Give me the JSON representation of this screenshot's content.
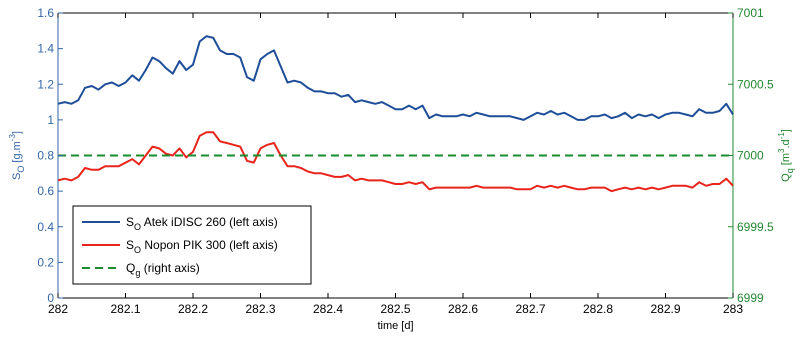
{
  "chart_data": {
    "type": "line",
    "xlabel": "time [d]",
    "xlim": [
      282,
      283
    ],
    "xticks": [
      "282",
      "282.1",
      "282.2",
      "282.3",
      "282.4",
      "282.5",
      "282.6",
      "282.7",
      "282.8",
      "282.9",
      "283"
    ],
    "left_axis": {
      "label_main": "S",
      "label_sub": "O",
      "label_rest": " [g.m",
      "label_sup": "-3",
      "label_end": "]",
      "ylim": [
        0,
        1.6
      ],
      "yticks": [
        "0",
        "0.2",
        "0.4",
        "0.6",
        "0.8",
        "1",
        "1.2",
        "1.4",
        "1.6"
      ],
      "color": "#3366aa"
    },
    "right_axis": {
      "label_main": "Q",
      "label_sub": "q",
      "label_rest": " [m",
      "label_sup1": "3",
      "label_mid": ".d",
      "label_sup2": "-1",
      "label_end": "]",
      "ylim": [
        6999,
        7001
      ],
      "yticks": [
        "6999",
        "6999.5",
        "7000",
        "7000.5",
        "7001"
      ],
      "color": "#228833"
    },
    "grid": false,
    "legend_position": "bottom-left",
    "series": [
      {
        "name_main": "S",
        "name_sub": "O",
        "name_rest": " Atek iDISC 260 (left axis)",
        "color": "#1f4e99",
        "style": "solid",
        "axis": "left",
        "x": [
          282.0,
          282.01,
          282.02,
          282.03,
          282.04,
          282.05,
          282.06,
          282.07,
          282.08,
          282.09,
          282.1,
          282.11,
          282.12,
          282.13,
          282.14,
          282.15,
          282.16,
          282.17,
          282.18,
          282.19,
          282.2,
          282.21,
          282.22,
          282.23,
          282.24,
          282.25,
          282.26,
          282.27,
          282.28,
          282.29,
          282.3,
          282.31,
          282.32,
          282.33,
          282.34,
          282.35,
          282.36,
          282.37,
          282.38,
          282.39,
          282.4,
          282.41,
          282.42,
          282.43,
          282.44,
          282.45,
          282.46,
          282.47,
          282.48,
          282.49,
          282.5,
          282.51,
          282.52,
          282.53,
          282.54,
          282.55,
          282.56,
          282.57,
          282.58,
          282.59,
          282.6,
          282.61,
          282.62,
          282.63,
          282.64,
          282.65,
          282.66,
          282.67,
          282.68,
          282.69,
          282.7,
          282.71,
          282.72,
          282.73,
          282.74,
          282.75,
          282.76,
          282.77,
          282.78,
          282.79,
          282.8,
          282.81,
          282.82,
          282.83,
          282.84,
          282.85,
          282.86,
          282.87,
          282.88,
          282.89,
          282.9,
          282.91,
          282.92,
          282.93,
          282.94,
          282.95,
          282.96,
          282.97,
          282.98,
          282.99,
          283.0
        ],
        "y": [
          1.09,
          1.1,
          1.09,
          1.11,
          1.18,
          1.19,
          1.17,
          1.2,
          1.21,
          1.19,
          1.21,
          1.25,
          1.22,
          1.28,
          1.35,
          1.33,
          1.29,
          1.26,
          1.33,
          1.28,
          1.31,
          1.44,
          1.47,
          1.46,
          1.39,
          1.37,
          1.37,
          1.35,
          1.24,
          1.22,
          1.34,
          1.37,
          1.39,
          1.3,
          1.21,
          1.22,
          1.21,
          1.18,
          1.16,
          1.16,
          1.15,
          1.15,
          1.13,
          1.14,
          1.1,
          1.11,
          1.1,
          1.09,
          1.1,
          1.08,
          1.06,
          1.06,
          1.08,
          1.06,
          1.08,
          1.01,
          1.03,
          1.02,
          1.02,
          1.02,
          1.03,
          1.02,
          1.04,
          1.03,
          1.02,
          1.02,
          1.02,
          1.02,
          1.01,
          1.0,
          1.02,
          1.04,
          1.03,
          1.05,
          1.03,
          1.04,
          1.02,
          1.0,
          1.0,
          1.02,
          1.02,
          1.03,
          1.01,
          1.02,
          1.04,
          1.01,
          1.03,
          1.02,
          1.03,
          1.01,
          1.03,
          1.04,
          1.04,
          1.03,
          1.02,
          1.06,
          1.04,
          1.04,
          1.05,
          1.09,
          1.03
        ]
      },
      {
        "name_main": "S",
        "name_sub": "O",
        "name_rest": " Nopon PIK 300 (left axis)",
        "color": "#e8241b",
        "style": "solid",
        "axis": "left",
        "x": [
          282.0,
          282.01,
          282.02,
          282.03,
          282.04,
          282.05,
          282.06,
          282.07,
          282.08,
          282.09,
          282.1,
          282.11,
          282.12,
          282.13,
          282.14,
          282.15,
          282.16,
          282.17,
          282.18,
          282.19,
          282.2,
          282.21,
          282.22,
          282.23,
          282.24,
          282.25,
          282.26,
          282.27,
          282.28,
          282.29,
          282.3,
          282.31,
          282.32,
          282.33,
          282.34,
          282.35,
          282.36,
          282.37,
          282.38,
          282.39,
          282.4,
          282.41,
          282.42,
          282.43,
          282.44,
          282.45,
          282.46,
          282.47,
          282.48,
          282.49,
          282.5,
          282.51,
          282.52,
          282.53,
          282.54,
          282.55,
          282.56,
          282.57,
          282.58,
          282.59,
          282.6,
          282.61,
          282.62,
          282.63,
          282.64,
          282.65,
          282.66,
          282.67,
          282.68,
          282.69,
          282.7,
          282.71,
          282.72,
          282.73,
          282.74,
          282.75,
          282.76,
          282.77,
          282.78,
          282.79,
          282.8,
          282.81,
          282.82,
          282.83,
          282.84,
          282.85,
          282.86,
          282.87,
          282.88,
          282.89,
          282.9,
          282.91,
          282.92,
          282.93,
          282.94,
          282.95,
          282.96,
          282.97,
          282.98,
          282.99,
          283.0
        ],
        "y": [
          0.66,
          0.67,
          0.66,
          0.68,
          0.73,
          0.72,
          0.72,
          0.74,
          0.74,
          0.74,
          0.76,
          0.78,
          0.75,
          0.8,
          0.85,
          0.84,
          0.81,
          0.8,
          0.84,
          0.79,
          0.82,
          0.91,
          0.93,
          0.93,
          0.88,
          0.87,
          0.86,
          0.85,
          0.77,
          0.76,
          0.84,
          0.86,
          0.87,
          0.8,
          0.74,
          0.74,
          0.73,
          0.71,
          0.7,
          0.7,
          0.69,
          0.68,
          0.68,
          0.69,
          0.66,
          0.67,
          0.66,
          0.66,
          0.66,
          0.65,
          0.64,
          0.64,
          0.65,
          0.64,
          0.65,
          0.61,
          0.62,
          0.62,
          0.62,
          0.62,
          0.62,
          0.62,
          0.63,
          0.62,
          0.62,
          0.62,
          0.62,
          0.62,
          0.61,
          0.61,
          0.61,
          0.63,
          0.62,
          0.63,
          0.62,
          0.63,
          0.62,
          0.61,
          0.61,
          0.62,
          0.62,
          0.62,
          0.6,
          0.61,
          0.62,
          0.61,
          0.62,
          0.61,
          0.62,
          0.61,
          0.62,
          0.63,
          0.63,
          0.63,
          0.62,
          0.65,
          0.63,
          0.64,
          0.64,
          0.67,
          0.63
        ]
      },
      {
        "name_main": "Q",
        "name_sub": "g",
        "name_rest": " (right axis)",
        "color": "#1a8c2e",
        "style": "dashed",
        "axis": "right",
        "x": [
          282,
          283
        ],
        "y": [
          7000,
          7000
        ]
      }
    ]
  }
}
